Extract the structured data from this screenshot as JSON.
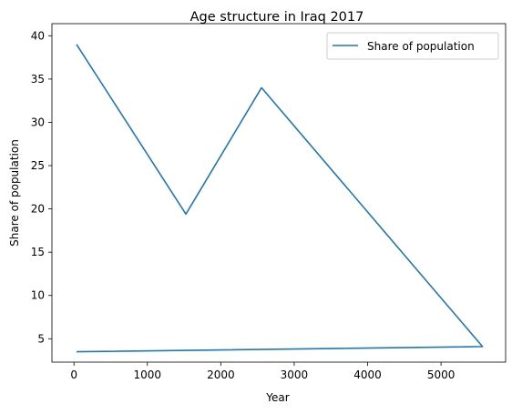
{
  "chart_data": {
    "type": "line",
    "title": "Age structure in Iraq 2017",
    "xlabel": "Year",
    "ylabel": "Share of population",
    "xlim": [
      -300,
      5880
    ],
    "ylim": [
      2.3,
      41.4
    ],
    "xticks": [
      0,
      1000,
      2000,
      3000,
      4000,
      5000
    ],
    "yticks": [
      5,
      10,
      15,
      20,
      25,
      30,
      35,
      40
    ],
    "grid": false,
    "legend": "top-right",
    "color": "#1f77b4",
    "series": [
      {
        "name": "Share of population",
        "x": [
          35,
          1525,
          2555,
          5565,
          35
        ],
        "y": [
          39.0,
          19.4,
          34.0,
          4.1,
          3.5
        ]
      }
    ]
  }
}
